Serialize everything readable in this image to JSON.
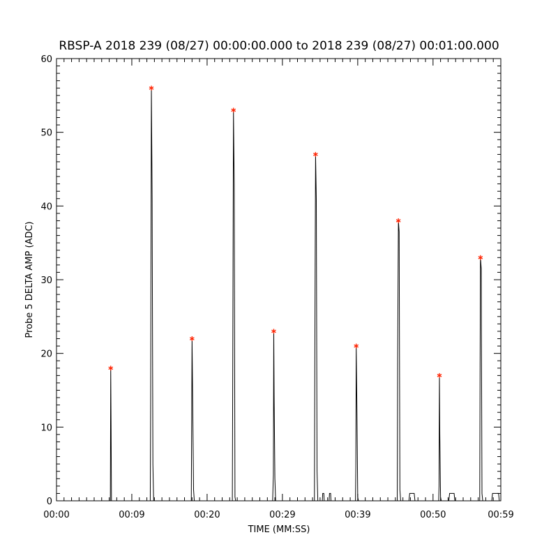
{
  "chart_data": {
    "type": "line",
    "title": "RBSP-A 2018 239 (08/27) 00:00:00.000 to 2018 239 (08/27) 00:01:00.000",
    "xlabel": "TIME (MM:SS)",
    "ylabel": "Probe 5 DELTA AMP (ADC)",
    "xlim": [
      0,
      59
    ],
    "ylim": [
      0,
      60
    ],
    "x_ticks": [
      {
        "value": 0,
        "label": "00:00"
      },
      {
        "value": 10,
        "label": "00:09"
      },
      {
        "value": 20,
        "label": "00:20"
      },
      {
        "value": 30,
        "label": "00:29"
      },
      {
        "value": 40,
        "label": "00:39"
      },
      {
        "value": 50,
        "label": "00:50"
      },
      {
        "value": 59,
        "label": "00:59"
      }
    ],
    "y_ticks": [
      {
        "value": 0,
        "label": "0"
      },
      {
        "value": 10,
        "label": "10"
      },
      {
        "value": 20,
        "label": "20"
      },
      {
        "value": 30,
        "label": "30"
      },
      {
        "value": 40,
        "label": "40"
      },
      {
        "value": 50,
        "label": "50"
      },
      {
        "value": 60,
        "label": "60"
      }
    ],
    "line_color": "#000000",
    "marker_color": "#ff2200",
    "series": [
      {
        "x": [
          0,
          7.15,
          7.2,
          7.25,
          7.3,
          7.35,
          7.4,
          12.45,
          12.5,
          12.6,
          12.7,
          12.8,
          12.9,
          17.85,
          17.9,
          18.0,
          18.1,
          18.2,
          18.3,
          23.35,
          23.4,
          23.5,
          23.6,
          23.7,
          23.8,
          28.7,
          28.8,
          28.85,
          28.9,
          29.0,
          29.1,
          34.25,
          34.3,
          34.4,
          34.5,
          34.6,
          34.7,
          35.3,
          35.35,
          35.5,
          35.55,
          36.2,
          36.25,
          36.4,
          36.45,
          39.7,
          39.75,
          39.8,
          39.9,
          40.0,
          40.1,
          45.25,
          45.3,
          45.4,
          45.5,
          45.6,
          45.7,
          46.8,
          46.9,
          47.5,
          47.6,
          50.75,
          50.8,
          50.85,
          50.9,
          51.0,
          51.1,
          52.1,
          52.2,
          52.8,
          52.9,
          56.2,
          56.25,
          56.3,
          56.4,
          56.5,
          56.6,
          57.8,
          57.9,
          58.7,
          58.8,
          59
        ],
        "y": [
          0,
          0,
          18,
          9.5,
          0,
          0,
          0,
          0,
          13,
          56,
          41,
          5,
          0,
          0,
          0,
          22,
          12,
          1.5,
          0,
          0,
          16,
          53,
          43,
          0.5,
          0,
          0,
          3.5,
          23,
          14,
          3,
          0,
          0,
          18,
          47,
          41,
          4,
          0,
          0,
          1,
          1,
          0,
          0,
          1,
          1,
          0,
          0,
          4.5,
          21,
          12,
          0.5,
          0,
          0,
          19,
          38,
          36.5,
          1.5,
          0,
          0,
          1,
          1,
          0,
          0,
          2,
          17,
          9,
          0.5,
          0,
          0,
          1,
          1,
          0,
          0,
          18.5,
          33,
          31.5,
          1,
          0,
          0,
          1,
          1,
          0,
          0
        ]
      }
    ],
    "peaks": {
      "x": [
        7.2,
        12.6,
        18.0,
        23.5,
        28.85,
        34.4,
        39.8,
        45.4,
        50.85,
        56.3
      ],
      "y": [
        18,
        56,
        22,
        53,
        23,
        47,
        21,
        38,
        17,
        33
      ]
    }
  }
}
